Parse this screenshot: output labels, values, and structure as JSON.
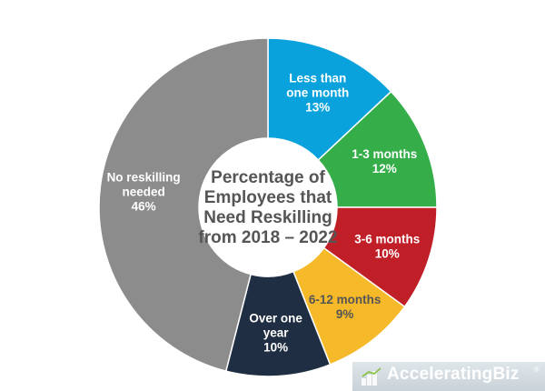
{
  "chart_data": {
    "type": "pie",
    "title_lines": [
      "Percentage of",
      "Employees that",
      "Need Reskilling",
      "from 2018 – 2022"
    ],
    "slices": [
      {
        "label_lines": [
          "Less than",
          "one month"
        ],
        "value": 13,
        "value_label": "13%",
        "color": "#0aa2dc",
        "text_color": "#ffffff"
      },
      {
        "label_lines": [
          "1-3 months"
        ],
        "value": 12,
        "value_label": "12%",
        "color": "#35ae4a",
        "text_color": "#ffffff"
      },
      {
        "label_lines": [
          "3-6 months"
        ],
        "value": 10,
        "value_label": "10%",
        "color": "#c01f28",
        "text_color": "#ffffff"
      },
      {
        "label_lines": [
          "6-12 months"
        ],
        "value": 9,
        "value_label": "9%",
        "color": "#f6b92a",
        "text_color": "#555555"
      },
      {
        "label_lines": [
          "Over one",
          "year"
        ],
        "value": 10,
        "value_label": "10%",
        "color": "#1f2e42",
        "text_color": "#ffffff"
      },
      {
        "label_lines": [
          "No reskilling",
          "needed"
        ],
        "value": 46,
        "value_label": "46%",
        "color": "#8c8c8c",
        "text_color": "#ffffff"
      }
    ]
  },
  "logo": {
    "text": "AcceleratingBiz",
    "reg_mark": "®"
  }
}
